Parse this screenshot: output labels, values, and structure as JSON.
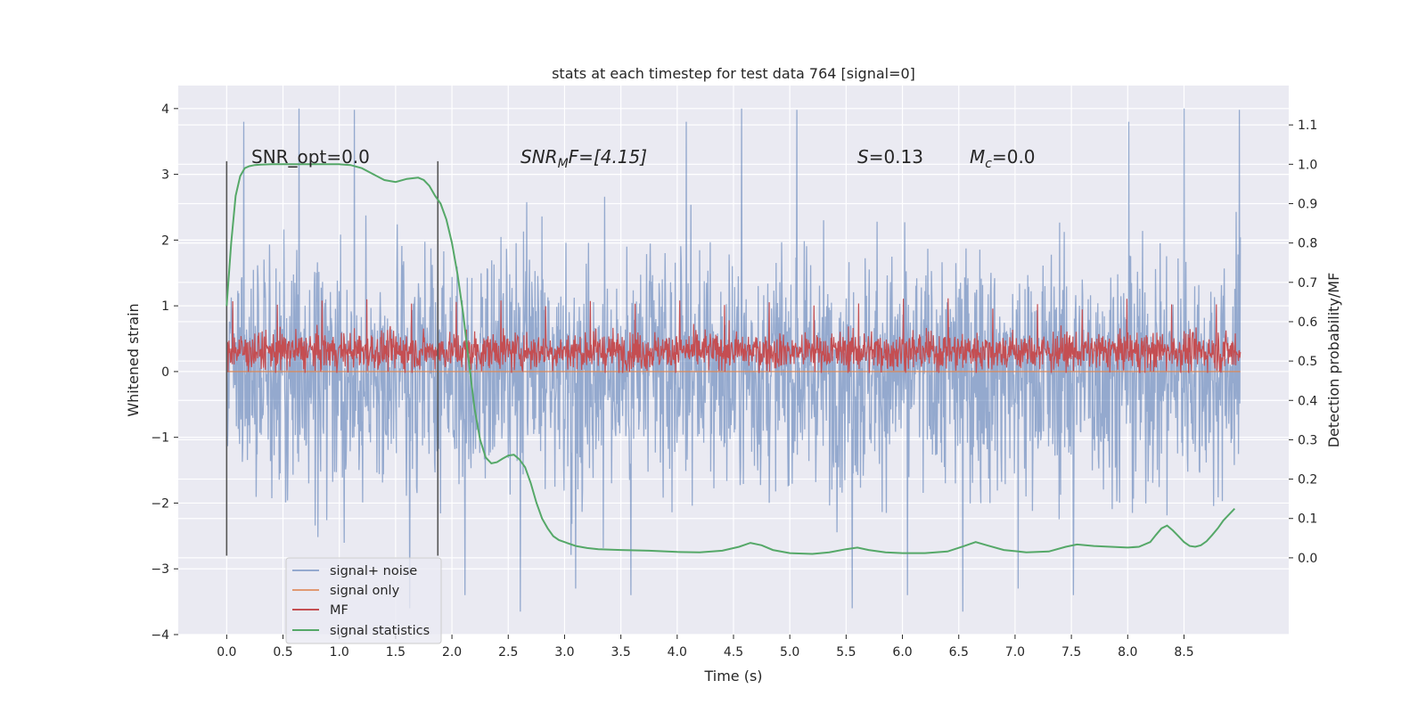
{
  "chart_data": {
    "type": "line",
    "title": "stats at each timestep for test data 764 [signal=0]",
    "xlabel": "Time (s)",
    "ylabel_left": "Whitened strain",
    "ylabel_right": "Detection probability/MF",
    "xlim": [
      -0.43,
      9.43
    ],
    "ylim_left": [
      -4.0,
      4.35
    ],
    "ylim_right": [
      -0.195,
      1.2
    ],
    "x_ticks": [
      0.0,
      0.5,
      1.0,
      1.5,
      2.0,
      2.5,
      3.0,
      3.5,
      4.0,
      4.5,
      5.0,
      5.5,
      6.0,
      6.5,
      7.0,
      7.5,
      8.0,
      8.5
    ],
    "x_tick_labels": [
      "0.0",
      "0.5",
      "1.0",
      "1.5",
      "2.0",
      "2.5",
      "3.0",
      "3.5",
      "4.0",
      "4.5",
      "5.0",
      "5.5",
      "6.0",
      "6.5",
      "7.0",
      "7.5",
      "8.0",
      "8.5"
    ],
    "y_left_ticks": [
      4,
      3,
      2,
      1,
      0,
      -1,
      -2,
      -3,
      -4
    ],
    "y_left_tick_labels": [
      "4",
      "3",
      "2",
      "1",
      "0",
      "−1",
      "−2",
      "−3",
      "−4"
    ],
    "y_right_ticks": [
      1.1,
      1.0,
      0.9,
      0.8,
      0.7,
      0.6,
      0.5,
      0.4,
      0.3,
      0.2,
      0.1,
      0.0
    ],
    "y_right_tick_labels": [
      "1.1",
      "1.0",
      "0.9",
      "0.8",
      "0.7",
      "0.6",
      "0.5",
      "0.4",
      "0.3",
      "0.2",
      "0.1",
      "0.0"
    ],
    "grid": true,
    "legend_position": "lower-left",
    "annotations": {
      "snr_opt": "SNR_opt=0.0",
      "snr_mf_prefix": "SNR",
      "snr_mf_sub": "M",
      "snr_mf_suffix": "F=[4.15]",
      "s_label": "S",
      "s_value": "=0.13",
      "mc_label": "M",
      "mc_sub": "c",
      "mc_value": "=0.0"
    },
    "vlines": [
      {
        "name": "window-start-line",
        "x": 0.0,
        "y_from": -2.8,
        "y_to": 3.2
      },
      {
        "name": "window-end-line",
        "x": 1.875,
        "y_from": -2.8,
        "y_to": 3.2
      }
    ],
    "series": [
      {
        "name": "signal+ noise",
        "axis": "left",
        "color": "#4c72b0",
        "opacity": 0.55,
        "x_range": [
          0.0,
          9.0
        ],
        "samples": 2200,
        "envelope_mean": 0.0,
        "envelope_std": 0.9,
        "spike_values": [
          3.8,
          4.0,
          3.98,
          -3.6,
          -3.4,
          -3.65,
          -3.3,
          -3.4
        ]
      },
      {
        "name": "signal only",
        "axis": "left",
        "color": "#dd8452",
        "opacity": 0.8,
        "x": [
          0.0,
          9.0
        ],
        "values": [
          0.0,
          0.0
        ]
      },
      {
        "name": "MF",
        "axis": "right",
        "color": "#c44e52",
        "opacity": 1.0,
        "x_range": [
          0.0,
          9.0
        ],
        "samples": 2200,
        "mean": 0.525,
        "std": 0.025,
        "max_value": 0.66,
        "min_value": 0.47
      },
      {
        "name": "signal statistics",
        "axis": "right",
        "color": "#55a868",
        "opacity": 1.0,
        "x": [
          0.0,
          0.04,
          0.08,
          0.12,
          0.16,
          0.2,
          0.25,
          0.3,
          0.4,
          0.5,
          0.6,
          0.8,
          1.0,
          1.1,
          1.2,
          1.3,
          1.4,
          1.5,
          1.6,
          1.7,
          1.75,
          1.8,
          1.85,
          1.9,
          1.95,
          2.0,
          2.05,
          2.1,
          2.15,
          2.2,
          2.25,
          2.3,
          2.35,
          2.4,
          2.45,
          2.5,
          2.55,
          2.6,
          2.65,
          2.7,
          2.75,
          2.8,
          2.85,
          2.9,
          2.95,
          3.0,
          3.1,
          3.2,
          3.3,
          3.5,
          3.75,
          4.0,
          4.2,
          4.4,
          4.55,
          4.65,
          4.75,
          4.85,
          5.0,
          5.2,
          5.35,
          5.5,
          5.6,
          5.7,
          5.85,
          6.0,
          6.2,
          6.4,
          6.55,
          6.65,
          6.75,
          6.9,
          7.1,
          7.3,
          7.45,
          7.55,
          7.7,
          7.85,
          8.0,
          8.1,
          8.2,
          8.25,
          8.3,
          8.35,
          8.4,
          8.45,
          8.5,
          8.55,
          8.6,
          8.65,
          8.7,
          8.75,
          8.8,
          8.85,
          8.9,
          8.95
        ],
        "values": [
          0.64,
          0.8,
          0.92,
          0.97,
          0.99,
          0.995,
          0.998,
          0.999,
          1.0,
          1.0,
          1.0,
          1.0,
          1.0,
          0.998,
          0.99,
          0.975,
          0.96,
          0.955,
          0.963,
          0.966,
          0.96,
          0.945,
          0.92,
          0.9,
          0.86,
          0.8,
          0.72,
          0.62,
          0.5,
          0.38,
          0.3,
          0.255,
          0.24,
          0.243,
          0.252,
          0.26,
          0.262,
          0.25,
          0.23,
          0.19,
          0.14,
          0.1,
          0.075,
          0.055,
          0.045,
          0.04,
          0.03,
          0.025,
          0.022,
          0.02,
          0.018,
          0.015,
          0.014,
          0.018,
          0.028,
          0.038,
          0.032,
          0.02,
          0.012,
          0.01,
          0.014,
          0.022,
          0.026,
          0.02,
          0.014,
          0.012,
          0.012,
          0.016,
          0.03,
          0.04,
          0.032,
          0.02,
          0.014,
          0.016,
          0.028,
          0.034,
          0.03,
          0.028,
          0.026,
          0.028,
          0.04,
          0.058,
          0.075,
          0.082,
          0.07,
          0.055,
          0.04,
          0.03,
          0.028,
          0.032,
          0.042,
          0.058,
          0.075,
          0.095,
          0.11,
          0.125
        ]
      }
    ]
  }
}
